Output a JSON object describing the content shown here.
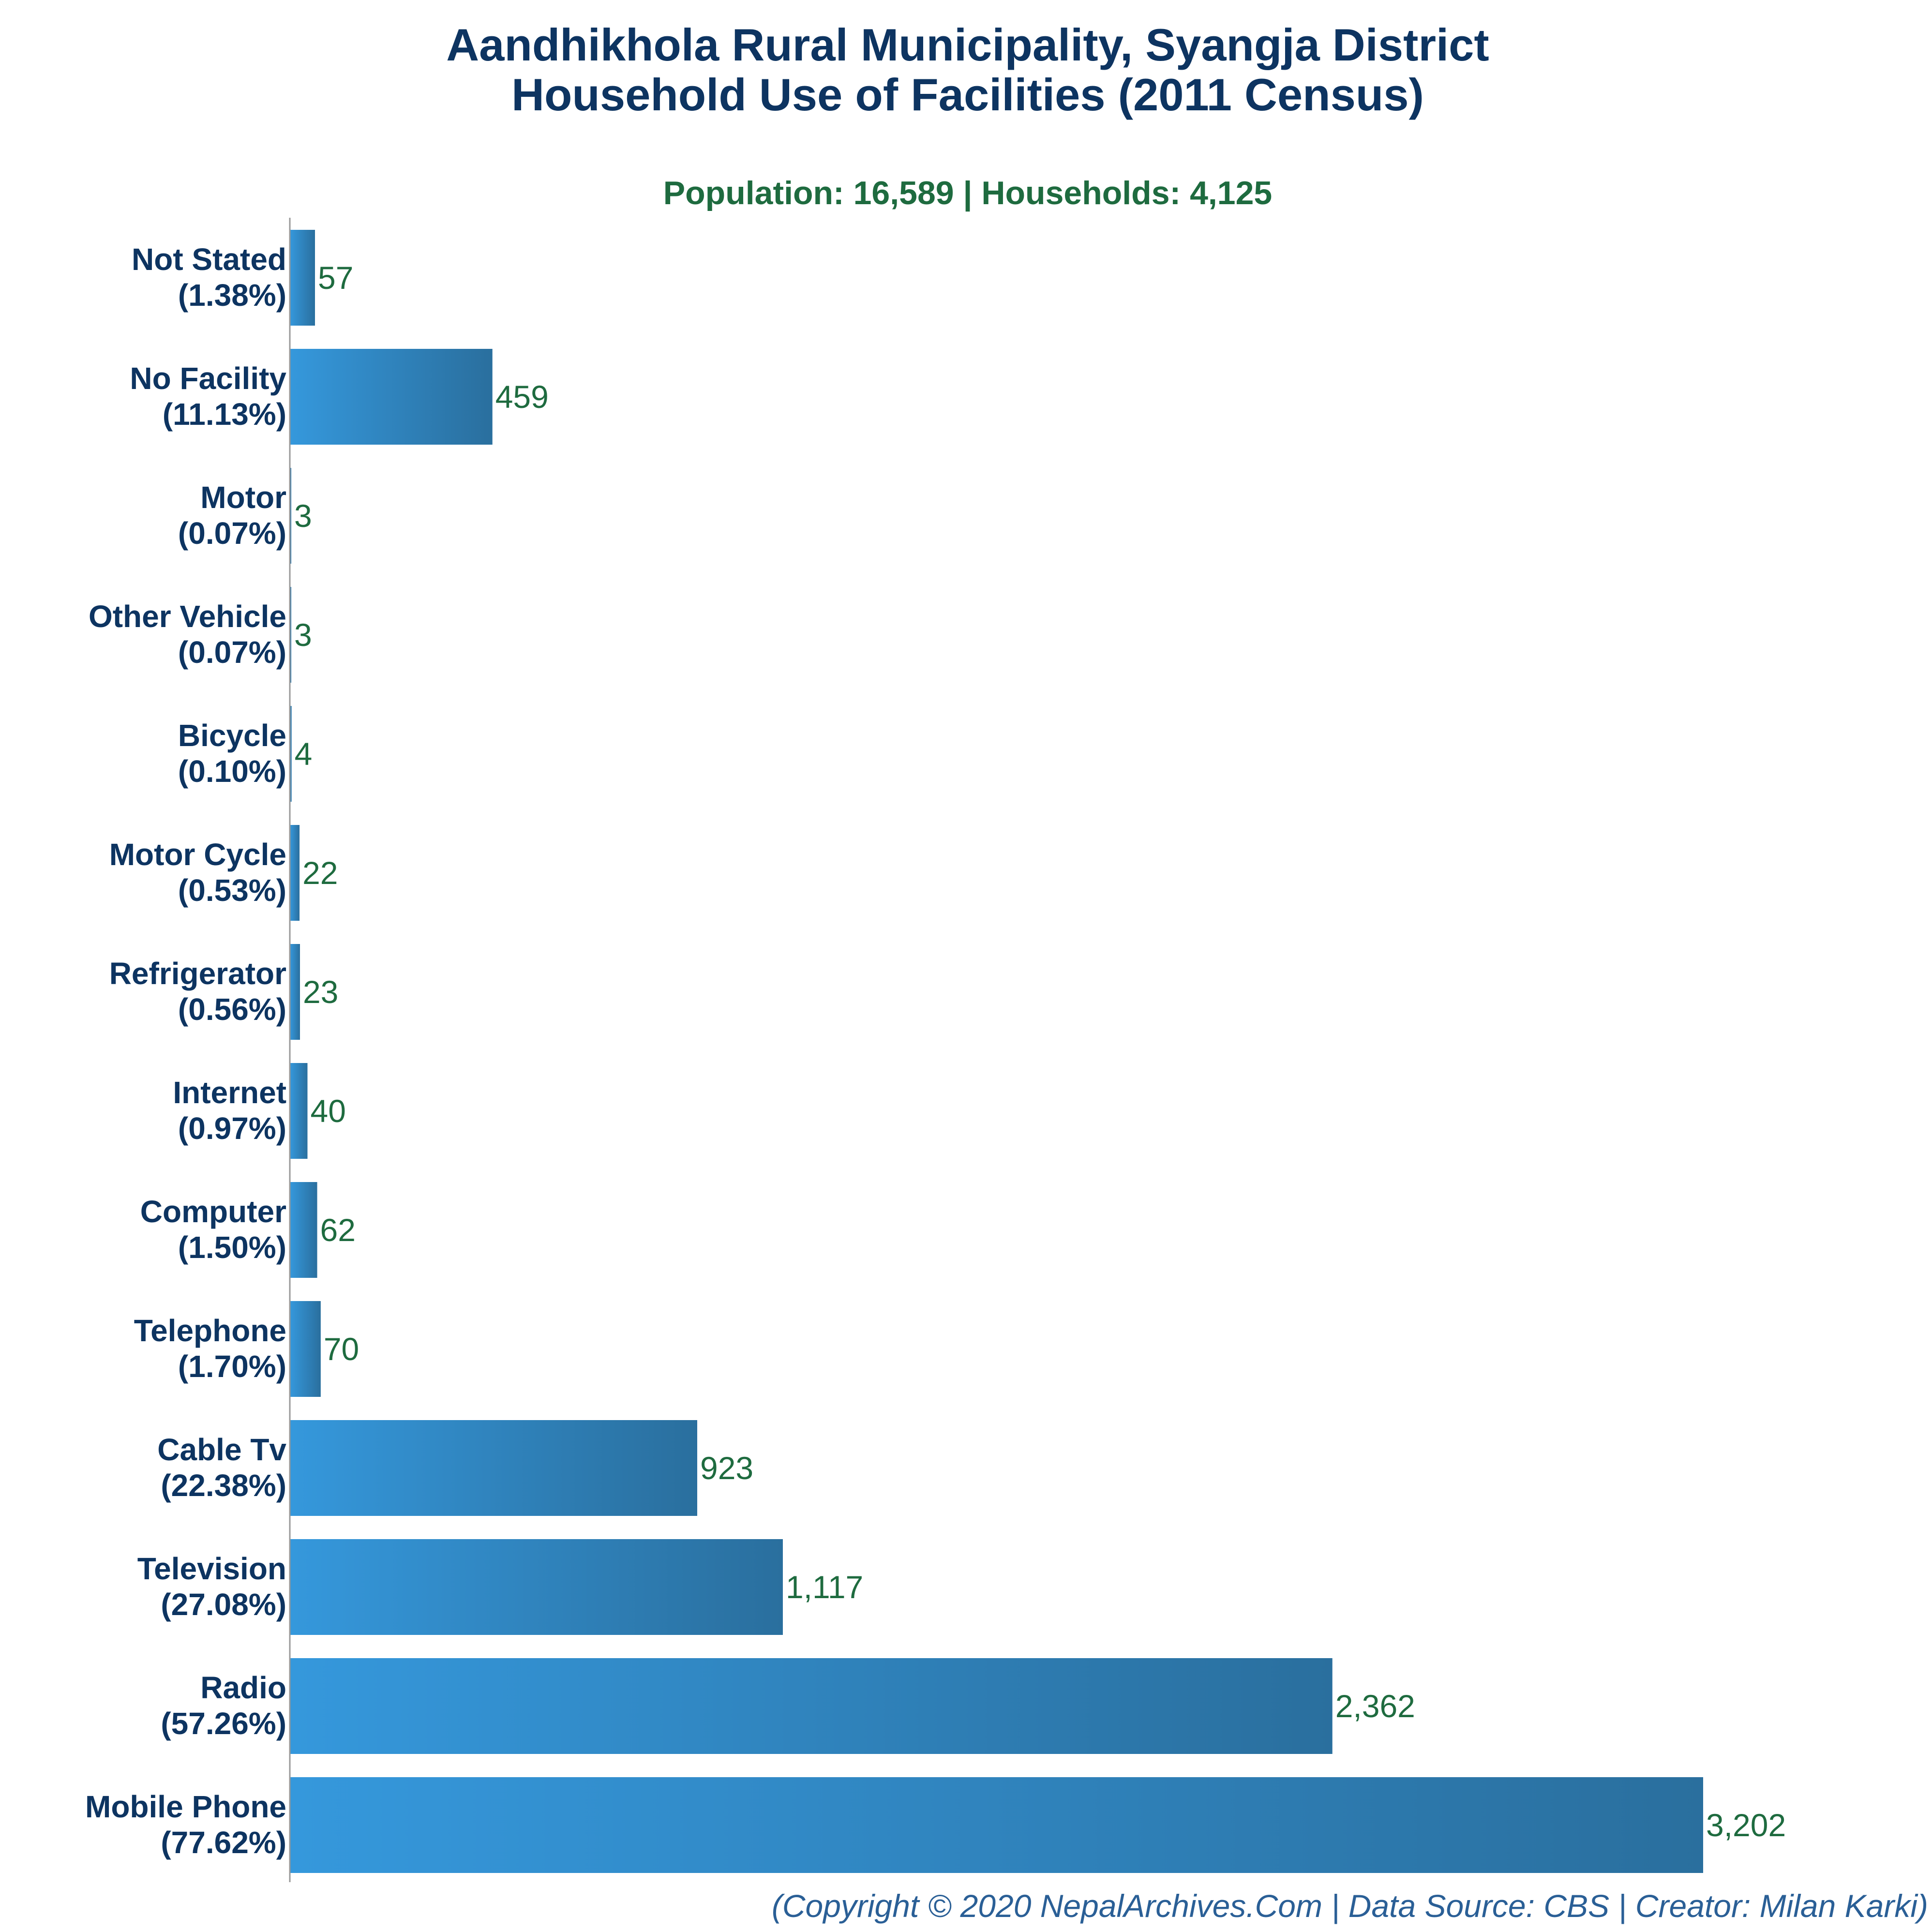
{
  "chart_data": {
    "type": "bar",
    "orientation": "horizontal",
    "title": "Aandhikhola Rural Municipality, Syangja District",
    "title_line2": "Household Use of Facilities (2011 Census)",
    "subtitle": "Population: 16,589 | Households: 4,125",
    "categories": [
      "Not Stated",
      "No Facility",
      "Motor",
      "Other Vehicle",
      "Bicycle",
      "Motor Cycle",
      "Refrigerator",
      "Internet",
      "Computer",
      "Telephone",
      "Cable Tv",
      "Television",
      "Radio",
      "Mobile Phone"
    ],
    "percent_labels": [
      "(1.38%)",
      "(11.13%)",
      "(0.07%)",
      "(0.07%)",
      "(0.10%)",
      "(0.53%)",
      "(0.56%)",
      "(0.97%)",
      "(1.50%)",
      "(1.70%)",
      "(22.38%)",
      "(27.08%)",
      "(57.26%)",
      "(77.62%)"
    ],
    "values": [
      57,
      459,
      3,
      3,
      4,
      22,
      23,
      40,
      62,
      70,
      923,
      1117,
      2362,
      3202
    ],
    "value_labels": [
      "57",
      "459",
      "3",
      "3",
      "4",
      "22",
      "23",
      "40",
      "62",
      "70",
      "923",
      "1,117",
      "2,362",
      "3,202"
    ],
    "xlim": [
      0,
      3202
    ],
    "grid": false,
    "legend": "none",
    "colors": {
      "bar_light": "#3598dc",
      "bar_dark": "#2a6f9e",
      "title": "#0d3461",
      "subtitle": "#1e6b3f",
      "value_label": "#1e6b3f",
      "footer": "#2a5f96",
      "axis": "#999999"
    }
  },
  "footer": "(Copyright © 2020 NepalArchives.Com | Data Source: CBS | Creator: Milan Karki)"
}
